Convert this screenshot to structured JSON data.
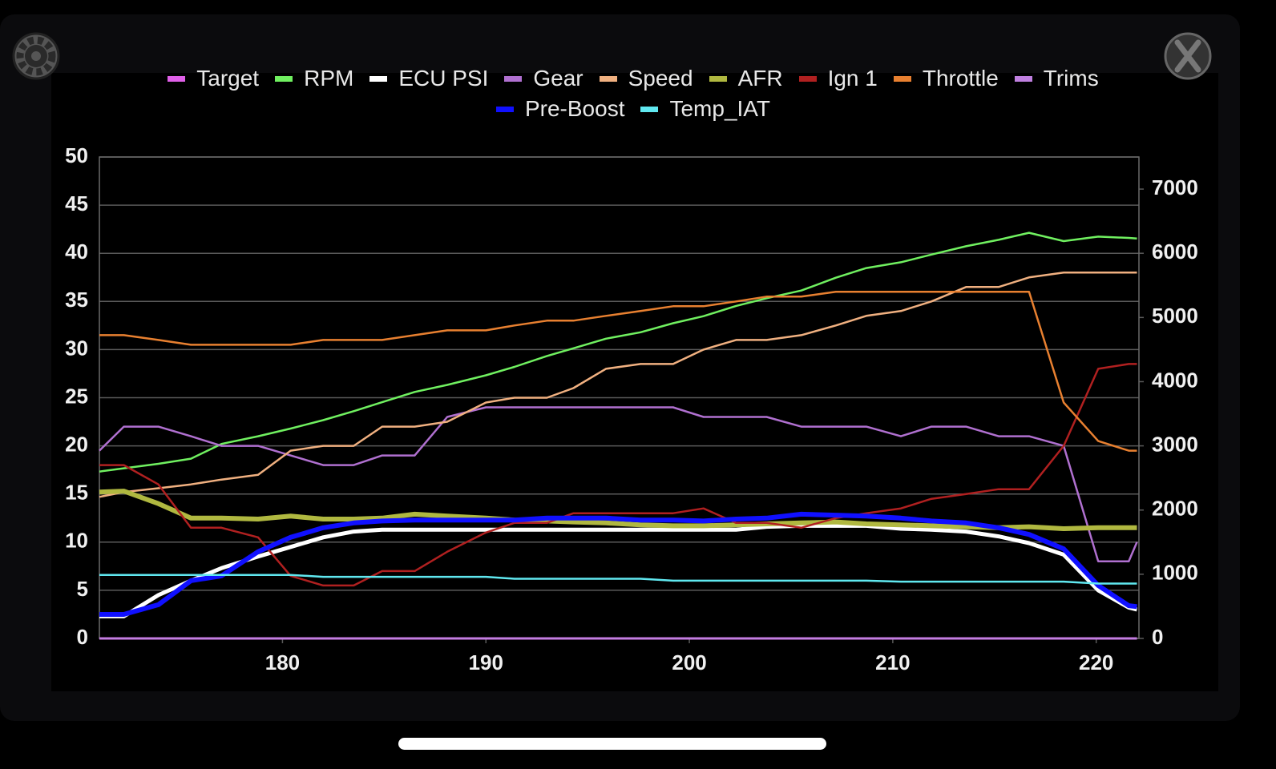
{
  "chart_data": {
    "type": "line",
    "x": [
      171,
      172.2,
      173.9,
      175.5,
      177,
      178.8,
      180.4,
      182,
      183.5,
      184.9,
      186.5,
      188.1,
      190,
      191.4,
      193,
      194.3,
      195.9,
      197.6,
      199.2,
      200.7,
      202.3,
      203.8,
      205.5,
      207.2,
      208.7,
      210.4,
      211.9,
      213.6,
      215.2,
      216.7,
      218.4,
      220.1,
      221.6,
      222
    ],
    "xlim": [
      171,
      222.1
    ],
    "xticks": [
      180,
      190,
      200,
      210,
      220
    ],
    "ylim": [
      0,
      50
    ],
    "yticks": [
      0,
      5,
      10,
      15,
      20,
      25,
      30,
      35,
      40,
      45,
      50
    ],
    "y2lim": [
      0,
      7500
    ],
    "y2ticks": [
      0,
      1000,
      2000,
      3000,
      4000,
      5000,
      6000,
      7000
    ],
    "grid": true,
    "legend": "top",
    "series": [
      {
        "name": "Target",
        "color": "#e060e8",
        "values": [
          0,
          0,
          0,
          0,
          0,
          0,
          0,
          0,
          0,
          0,
          0,
          0,
          0,
          0,
          0,
          0,
          0,
          0,
          0,
          0,
          0,
          0,
          0,
          0,
          0,
          0,
          0,
          0,
          0,
          0,
          0,
          0,
          0,
          0
        ]
      },
      {
        "name": "RPM",
        "color": "#70f060",
        "axis": "y2",
        "values": [
          2600,
          2650,
          2720,
          2800,
          3030,
          3150,
          3270,
          3400,
          3540,
          3680,
          3840,
          3950,
          4100,
          4230,
          4400,
          4520,
          4670,
          4770,
          4910,
          5020,
          5180,
          5300,
          5420,
          5620,
          5770,
          5860,
          5980,
          6110,
          6210,
          6320,
          6190,
          6260,
          6240,
          6230
        ]
      },
      {
        "name": "ECU PSI",
        "color": "#ffffff",
        "values": [
          2.3,
          2.3,
          4.5,
          6,
          7.3,
          8.5,
          9.5,
          10.5,
          11.1,
          11.3,
          11.3,
          11.3,
          11.3,
          11.3,
          11.3,
          11.3,
          11.3,
          11.3,
          11.3,
          11.3,
          11.3,
          11.6,
          11.7,
          11.7,
          11.7,
          11.4,
          11.3,
          11.1,
          10.6,
          9.9,
          8.7,
          5,
          3.2,
          3
        ]
      },
      {
        "name": "Gear",
        "color": "#b070d0",
        "values": [
          19.5,
          22,
          22,
          21,
          20,
          20,
          19,
          18,
          18,
          19,
          19,
          23,
          24,
          24,
          24,
          24,
          24,
          24,
          24,
          23,
          23,
          23,
          22,
          22,
          22,
          21,
          22,
          22,
          21,
          21,
          20,
          8,
          8,
          10
        ]
      },
      {
        "name": "Speed",
        "color": "#f0b080",
        "values": [
          14.7,
          15.2,
          15.6,
          16,
          16.5,
          17,
          19.5,
          20,
          20,
          22,
          22,
          22.5,
          24.5,
          25,
          25,
          26,
          28,
          28.5,
          28.5,
          30,
          31,
          31,
          31.5,
          32.5,
          33.5,
          34,
          35,
          36.5,
          36.5,
          37.5,
          38,
          38,
          38,
          38
        ]
      },
      {
        "name": "AFR",
        "color": "#b0b840",
        "values": [
          15.2,
          15.3,
          14,
          12.5,
          12.5,
          12.4,
          12.7,
          12.4,
          12.4,
          12.5,
          12.9,
          12.7,
          12.5,
          12.3,
          12.2,
          12.1,
          12,
          11.8,
          11.7,
          11.7,
          11.8,
          11.9,
          12,
          12.1,
          11.9,
          11.8,
          11.7,
          11.6,
          11.5,
          11.6,
          11.4,
          11.5,
          11.5,
          11.5
        ]
      },
      {
        "name": "Ign 1",
        "color": "#b02020",
        "values": [
          18,
          18,
          16,
          11.5,
          11.5,
          10.5,
          6.5,
          5.5,
          5.5,
          7,
          7,
          9,
          11,
          12,
          12,
          13,
          13,
          13,
          13,
          13.5,
          12,
          12,
          11.5,
          12.5,
          13,
          13.5,
          14.5,
          15,
          15.5,
          15.5,
          20,
          28,
          28.5,
          28.5
        ]
      },
      {
        "name": "Throttle",
        "color": "#e88030",
        "values": [
          31.5,
          31.5,
          31,
          30.5,
          30.5,
          30.5,
          30.5,
          31,
          31,
          31,
          31.5,
          32,
          32,
          32.5,
          33,
          33,
          33.5,
          34,
          34.5,
          34.5,
          35,
          35.5,
          35.5,
          36,
          36,
          36,
          36,
          36,
          36,
          36,
          24.5,
          20.5,
          19.5,
          19.5
        ]
      },
      {
        "name": "Trims",
        "color": "#c080e0",
        "values": [
          0,
          0,
          0,
          0,
          0,
          0,
          0,
          0,
          0,
          0,
          0,
          0,
          0,
          0,
          0,
          0,
          0,
          0,
          0,
          0,
          0,
          0,
          0,
          0,
          0,
          0,
          0,
          0,
          0,
          0,
          0,
          0,
          0,
          0
        ]
      },
      {
        "name": "Pre-Boost",
        "color": "#1010ff",
        "values": [
          2.5,
          2.5,
          3.5,
          6,
          6.5,
          9,
          10.5,
          11.5,
          12,
          12.2,
          12.3,
          12.3,
          12.3,
          12.3,
          12.5,
          12.5,
          12.5,
          12.3,
          12.3,
          12.2,
          12.4,
          12.5,
          12.9,
          12.8,
          12.7,
          12.5,
          12.2,
          12,
          11.5,
          10.8,
          9.3,
          5.5,
          3.4,
          3.3
        ]
      },
      {
        "name": "Temp_IAT",
        "color": "#60e8f0",
        "values": [
          6.6,
          6.6,
          6.6,
          6.6,
          6.6,
          6.6,
          6.6,
          6.4,
          6.4,
          6.4,
          6.4,
          6.4,
          6.4,
          6.2,
          6.2,
          6.2,
          6.2,
          6.2,
          6,
          6,
          6,
          6,
          6,
          6,
          6,
          5.9,
          5.9,
          5.9,
          5.9,
          5.9,
          5.9,
          5.7,
          5.7,
          5.7
        ]
      }
    ]
  }
}
